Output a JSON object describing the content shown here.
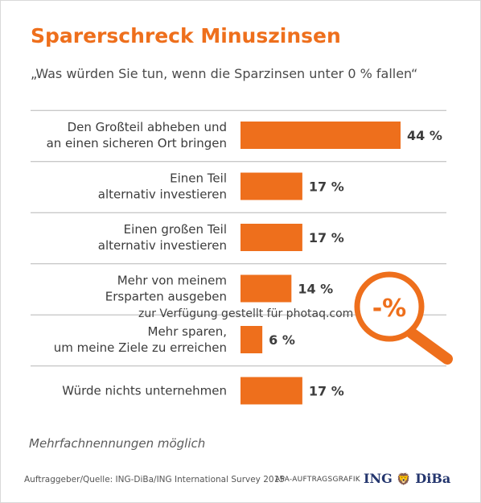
{
  "title": "Sparerschreck Minuszinsen",
  "subtitle": "„Was würden Sie tun, wenn die Sparzinsen unter 0 % fallen“",
  "chart_data": {
    "type": "bar",
    "orientation": "horizontal",
    "categories": [
      [
        "Den Großteil abheben und",
        "an einen sicheren Ort bringen"
      ],
      [
        "Einen Teil",
        "alternativ investieren"
      ],
      [
        "Einen großen Teil",
        "alternativ investieren"
      ],
      [
        "Mehr von meinem",
        "Ersparten ausgeben"
      ],
      [
        "Mehr sparen,",
        "um meine Ziele zu erreichen"
      ],
      [
        "Würde nichts unternehmen"
      ]
    ],
    "values": [
      44,
      17,
      17,
      14,
      6,
      17
    ],
    "value_labels": [
      "44 %",
      "17 %",
      "17 %",
      "14 %",
      "6 %",
      "17 %"
    ],
    "unit": "%",
    "bar_color": "#ee6f1c",
    "grid": false
  },
  "magnifier_label": "-%",
  "note": "Mehrfachnennungen möglich",
  "source": "Auftraggeber/Quelle: ING-DiBa/ING International Survey 2015",
  "credit": "APA-AUFTRAGSGRAFIK",
  "logo": {
    "left": "ING",
    "right": "DiBa",
    "lion_icon": "lion-icon"
  },
  "watermark": "zur Verfügung gestellt für photaq.com",
  "colors": {
    "accent": "#ee6f1c",
    "text": "#3c3c3c",
    "logo_blue": "#24366e"
  }
}
